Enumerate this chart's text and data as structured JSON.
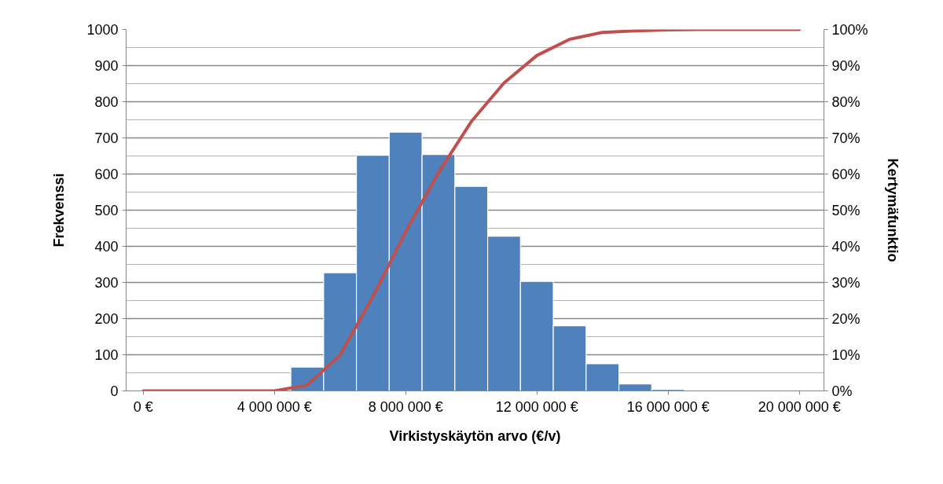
{
  "chart_data": {
    "type": "histogram",
    "xlabel": "Virkistyskäytön arvo (€/v)",
    "ylabel": "Frekvenssi",
    "y2label": "Kertymäfunktio",
    "xlim": [
      -520000,
      20750000
    ],
    "xticks": [
      {
        "value": 0,
        "label": "0 €"
      },
      {
        "value": 4000000,
        "label": "4 000 000 €"
      },
      {
        "value": 8000000,
        "label": "8 000 000 €"
      },
      {
        "value": 12000000,
        "label": "12 000 000 €"
      },
      {
        "value": 16000000,
        "label": "16 000 000 €"
      },
      {
        "value": 20000000,
        "label": "20 000 000 €"
      }
    ],
    "ylim": [
      0,
      1000
    ],
    "yticks": [
      0,
      100,
      200,
      300,
      400,
      500,
      600,
      700,
      800,
      900,
      1000
    ],
    "y2lim": [
      0,
      100
    ],
    "y2ticks": [
      {
        "value": 0,
        "label": "0%"
      },
      {
        "value": 10,
        "label": "10%"
      },
      {
        "value": 20,
        "label": "20%"
      },
      {
        "value": 30,
        "label": "30%"
      },
      {
        "value": 40,
        "label": "40%"
      },
      {
        "value": 50,
        "label": "50%"
      },
      {
        "value": 60,
        "label": "60%"
      },
      {
        "value": 70,
        "label": "70%"
      },
      {
        "value": 80,
        "label": "80%"
      },
      {
        "value": 90,
        "label": "90%"
      },
      {
        "value": 100,
        "label": "100%"
      }
    ],
    "grid": "y",
    "series": [
      {
        "color": "#4f81bd",
        "bins": [
          4500000,
          5500000,
          6500000,
          7500000,
          8500000,
          9500000,
          10500000,
          11500000,
          12500000,
          13500000,
          14500000,
          15500000,
          16500000
        ],
        "values": [
          66,
          327,
          652,
          716,
          654,
          566,
          428,
          303,
          180,
          75,
          19,
          4
        ]
      },
      {
        "type": "line",
        "axis": "y2",
        "color": "#c0504d",
        "x": [
          0,
          4000000,
          5000000,
          6000000,
          7000000,
          8000000,
          9000000,
          10000000,
          11000000,
          12000000,
          13000000,
          14000000,
          15000000,
          16000000,
          17000000,
          18000000,
          19000000,
          20000000
        ],
        "values": [
          0,
          0,
          1.6,
          9.9,
          26.1,
          44,
          60.4,
          74.5,
          85.2,
          92.8,
          97.3,
          99.2,
          99.6,
          99.9,
          100,
          100,
          100,
          100
        ]
      }
    ]
  }
}
